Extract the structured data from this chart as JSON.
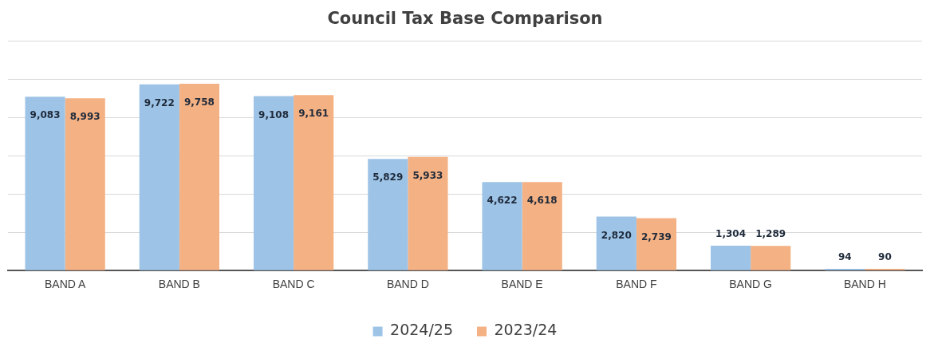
{
  "chart_data": {
    "type": "bar",
    "title": "Council Tax Base Comparison",
    "categories": [
      "BAND A",
      "BAND B",
      "BAND C",
      "BAND D",
      "BAND E",
      "BAND F",
      "BAND G",
      "BAND H"
    ],
    "series": [
      {
        "name": "2024/25",
        "color": "#9dc3e6",
        "values": [
          9083,
          9722,
          9108,
          5829,
          4622,
          2820,
          1304,
          94
        ],
        "value_labels": [
          "9,083",
          "9,722",
          "9,108",
          "5,829",
          "4,622",
          "2,820",
          "1,304",
          "94"
        ]
      },
      {
        "name": "2023/24",
        "color": "#f4b183",
        "values": [
          8993,
          9758,
          9161,
          5933,
          4618,
          2739,
          1289,
          90
        ],
        "value_labels": [
          "8,993",
          "9,758",
          "9,161",
          "5,933",
          "4,618",
          "2,739",
          "1,289",
          "90"
        ]
      }
    ],
    "ylim": [
      0,
      12000
    ],
    "yticks": [
      {
        "value": 0,
        "label": null
      },
      {
        "value": 2000,
        "label": null
      },
      {
        "value": 4000,
        "label": null
      },
      {
        "value": 6000,
        "label": null
      },
      {
        "value": 8000,
        "label": null
      },
      {
        "value": 10000,
        "label": null
      },
      {
        "value": 12000,
        "label": null
      }
    ],
    "tick_labels": "x",
    "grid": "y",
    "legend": "bottom"
  }
}
